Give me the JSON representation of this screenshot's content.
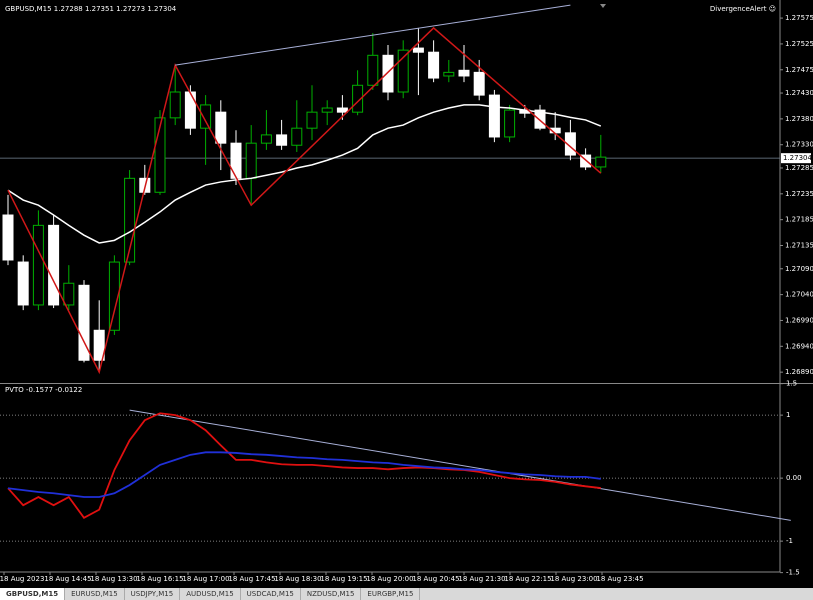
{
  "header": "GBPUSD,M15  1.27288 1.27351 1.27273 1.27304",
  "alert_label": "DivergenceAlert ☺",
  "indicator_label": "PVTO -0.1577 -0.0122",
  "tabs": [
    "GBPUSD,M15",
    "EURUSD,M15",
    "USDJPY,M15",
    "AUDUSD,M15",
    "USDCAD,M15",
    "NZDUSD,M15",
    "EURGBP,M15"
  ],
  "time_labels": [
    "18 Aug 2023",
    "18 Aug 14:45",
    "18 Aug 13:30",
    "18 Aug 16:15",
    "18 Aug 17:00",
    "18 Aug 17:45",
    "18 Aug 18:30",
    "18 Aug 19:15",
    "18 Aug 20:00",
    "18 Aug 20:45",
    "18 Aug 21:30",
    "18 Aug 22:15",
    "18 Aug 23:00",
    "18 Aug 23:45"
  ],
  "chart_data": [
    {
      "type": "candlestick",
      "ylim": [
        1.26869,
        1.2761
      ],
      "yticks": [
        1.27575,
        1.27525,
        1.27475,
        {
          "value": 1.2743,
          "label": "1.27430"
        },
        {
          "value": 1.2738,
          "label": "1.27380"
        },
        {
          "value": 1.2733,
          "label": "1.27330"
        },
        1.27285,
        1.27235,
        1.27185,
        1.27135,
        {
          "value": 1.2709,
          "label": "1.27090"
        },
        {
          "value": 1.2704,
          "label": "1.27040"
        },
        {
          "value": 1.2699,
          "label": "1.26990"
        },
        {
          "value": 1.2694,
          "label": "1.26940"
        },
        {
          "value": 1.2689,
          "label": "1.26890"
        }
      ],
      "current_price": 1.27304,
      "bull_color": "#00b000",
      "bear_color": "#ffffff",
      "open": [
        1.27194,
        1.27103,
        1.2702,
        1.27174,
        1.2702,
        1.27058,
        1.26971,
        1.26971,
        1.27103,
        1.27265,
        1.27238,
        1.27382,
        1.27432,
        1.27362,
        1.27393,
        1.27333,
        1.27265,
        1.27333,
        1.27349,
        1.27329,
        1.27362,
        1.27393,
        1.27401,
        1.27393,
        1.27445,
        1.27503,
        1.27432,
        1.27517,
        1.27509,
        1.27463,
        1.27474,
        1.2747,
        1.27426,
        1.27345,
        1.27397,
        1.27397,
        1.27362,
        1.27353,
        1.2731,
        1.27287
      ],
      "high": [
        1.27233,
        1.27116,
        1.27203,
        1.27194,
        1.27097,
        1.27068,
        1.27029,
        1.27116,
        1.27281,
        1.27291,
        1.27397,
        1.27484,
        1.27445,
        1.27426,
        1.27416,
        1.27358,
        1.27368,
        1.27397,
        1.27378,
        1.27416,
        1.27445,
        1.27416,
        1.27426,
        1.27474,
        1.27546,
        1.27523,
        1.27532,
        1.27556,
        1.27532,
        1.27494,
        1.27523,
        1.27494,
        1.27436,
        1.27407,
        1.27407,
        1.27407,
        1.27393,
        1.27378,
        1.27323,
        1.27349
      ],
      "low": [
        1.27097,
        1.2701,
        1.2701,
        1.27014,
        1.2701,
        1.26909,
        1.2689,
        1.26962,
        1.27097,
        1.27233,
        1.27233,
        1.27368,
        1.27349,
        1.27291,
        1.27281,
        1.27252,
        1.27213,
        1.2732,
        1.2732,
        1.27316,
        1.27339,
        1.27368,
        1.27378,
        1.27387,
        1.27436,
        1.27416,
        1.2742,
        1.27426,
        1.27451,
        1.27451,
        1.27451,
        1.27416,
        1.27335,
        1.27335,
        1.27382,
        1.27358,
        1.27339,
        1.273,
        1.27281,
        1.27275
      ],
      "close": [
        1.27107,
        1.2702,
        1.27174,
        1.2702,
        1.27062,
        1.26913,
        1.26913,
        1.27103,
        1.27265,
        1.27238,
        1.27382,
        1.27432,
        1.27362,
        1.27407,
        1.27333,
        1.27265,
        1.27333,
        1.27349,
        1.27329,
        1.27362,
        1.27393,
        1.27401,
        1.27393,
        1.27445,
        1.27503,
        1.27432,
        1.27513,
        1.27509,
        1.27459,
        1.2747,
        1.27463,
        1.27426,
        1.27345,
        1.27397,
        1.27391,
        1.27362,
        1.27353,
        1.2731,
        1.27287,
        1.27306
      ],
      "moving_average": {
        "color": "#ffffff",
        "values": [
          1.27242,
          1.27223,
          1.27213,
          1.27194,
          1.27174,
          1.27155,
          1.2714,
          1.27145,
          1.27161,
          1.2718,
          1.272,
          1.27223,
          1.27238,
          1.27252,
          1.27258,
          1.27262,
          1.27265,
          1.27271,
          1.27277,
          1.27285,
          1.27291,
          1.273,
          1.2731,
          1.27323,
          1.27349,
          1.27362,
          1.27368,
          1.27382,
          1.27393,
          1.27401,
          1.27407,
          1.27407,
          1.27403,
          1.27401,
          1.27397,
          1.27393,
          1.27389,
          1.27383,
          1.27378,
          1.27366
        ]
      },
      "zigzag": {
        "color": "#d01818",
        "x": [
          0,
          6,
          11,
          16,
          28,
          39
        ],
        "values": [
          1.27242,
          1.2689,
          1.27484,
          1.27213,
          1.27556,
          1.27275
        ]
      },
      "trendline": {
        "color": "#a8b0d8",
        "x": [
          11,
          37
        ],
        "values": [
          1.27484,
          1.276
        ]
      }
    },
    {
      "type": "line",
      "ylim": [
        -1.49,
        1.51
      ],
      "yticks": [
        1.5,
        1,
        {
          "value": 0,
          "label": "0.00"
        },
        -1,
        -1.5
      ],
      "levels": [
        1,
        0,
        -1
      ],
      "series": [
        {
          "color": "#e01010",
          "values": [
            -0.16,
            -0.43,
            -0.3,
            -0.43,
            -0.3,
            -0.63,
            -0.5,
            0.13,
            0.6,
            0.92,
            1.03,
            1,
            0.92,
            0.76,
            0.52,
            0.29,
            0.29,
            0.25,
            0.22,
            0.21,
            0.21,
            0.19,
            0.17,
            0.16,
            0.16,
            0.14,
            0.16,
            0.17,
            0.16,
            0.14,
            0.13,
            0.1,
            0.05,
            0,
            -0.02,
            -0.03,
            -0.06,
            -0.1,
            -0.13,
            -0.1577
          ]
        },
        {
          "color": "#2030d8",
          "values": [
            -0.16,
            -0.19,
            -0.22,
            -0.24,
            -0.27,
            -0.3,
            -0.3,
            -0.24,
            -0.11,
            0.05,
            0.21,
            0.29,
            0.37,
            0.41,
            0.41,
            0.4,
            0.38,
            0.37,
            0.35,
            0.33,
            0.32,
            0.3,
            0.29,
            0.27,
            0.25,
            0.24,
            0.21,
            0.19,
            0.17,
            0.16,
            0.14,
            0.13,
            0.1,
            0.08,
            0.06,
            0.05,
            0.03,
            0.02,
            0.02,
            -0.0122
          ]
        }
      ],
      "trendline": {
        "color": "#a8b0d8",
        "x": [
          8,
          51.5
        ],
        "values": [
          1.08,
          -0.67
        ]
      }
    }
  ]
}
